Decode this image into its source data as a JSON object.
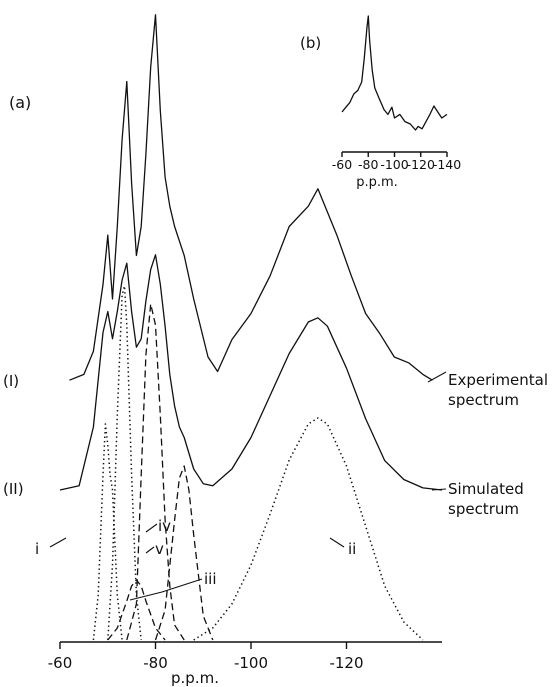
{
  "chart_data": [
    {
      "type": "line",
      "panel_label": "(a)",
      "xlabel": "p.p.m.",
      "xlim": [
        -60,
        -140
      ],
      "x_ticks": [
        -60,
        -80,
        -100,
        -120
      ],
      "x_tick_labels": [
        "-60",
        "-80",
        "-100",
        "-120"
      ],
      "series": [
        {
          "name": "Experimental spectrum",
          "label": "(I)",
          "style": "solid",
          "x": [
            -62,
            -65,
            -67,
            -69,
            -70,
            -71,
            -72,
            -73,
            -74,
            -75,
            -76,
            -77,
            -78,
            -79,
            -80,
            -81,
            -82,
            -83,
            -84,
            -86,
            -88,
            -91,
            -93,
            -96,
            -100,
            -104,
            -108,
            -112,
            -114,
            -116,
            -118,
            -121,
            -124,
            -127,
            -130,
            -133,
            -136,
            -138
          ],
          "y": [
            0.02,
            0.04,
            0.12,
            0.35,
            0.52,
            0.3,
            0.55,
            0.85,
            1.05,
            0.7,
            0.45,
            0.55,
            0.8,
            1.1,
            1.28,
            0.95,
            0.72,
            0.62,
            0.55,
            0.45,
            0.3,
            0.1,
            0.05,
            0.16,
            0.25,
            0.38,
            0.55,
            0.62,
            0.68,
            0.6,
            0.52,
            0.38,
            0.25,
            0.18,
            0.1,
            0.08,
            0.04,
            0.02
          ]
        },
        {
          "name": "Simulated spectrum",
          "label": "(II)",
          "style": "solid",
          "x": [
            -60,
            -64,
            -67,
            -69,
            -70,
            -71,
            -72,
            -73,
            -74,
            -75,
            -76,
            -77,
            -78,
            -79,
            -80,
            -81,
            -82,
            -83,
            -84,
            -85,
            -86,
            -88,
            -90,
            -92,
            -96,
            -100,
            -104,
            -108,
            -112,
            -114,
            -116,
            -120,
            -124,
            -128,
            -132,
            -136,
            -140
          ],
          "y": [
            0.0,
            0.02,
            0.3,
            0.75,
            0.85,
            0.72,
            0.85,
            1.0,
            1.08,
            0.85,
            0.68,
            0.72,
            0.9,
            1.05,
            1.12,
            0.98,
            0.78,
            0.55,
            0.4,
            0.3,
            0.25,
            0.1,
            0.03,
            0.02,
            0.1,
            0.25,
            0.45,
            0.65,
            0.8,
            0.82,
            0.78,
            0.58,
            0.34,
            0.14,
            0.05,
            0.01,
            0.0
          ]
        },
        {
          "name": "i",
          "style": "dotted",
          "x": [
            -67,
            -68,
            -69,
            -69.5,
            -70,
            -70.5,
            -71,
            -72,
            -73
          ],
          "y": [
            0.0,
            0.15,
            0.55,
            0.72,
            0.65,
            0.55,
            0.5,
            0.15,
            0.0
          ]
        },
        {
          "name": "ii",
          "style": "dotted",
          "x": [
            -88,
            -92,
            -96,
            -100,
            -104,
            -108,
            -112,
            -114,
            -116,
            -120,
            -124,
            -128,
            -132,
            -136
          ],
          "y": [
            0.0,
            0.04,
            0.12,
            0.25,
            0.42,
            0.6,
            0.72,
            0.74,
            0.72,
            0.58,
            0.38,
            0.18,
            0.06,
            0.0
          ]
        },
        {
          "name": "iii",
          "style": "dashed",
          "x": [
            -70,
            -72,
            -74,
            -75,
            -76,
            -77,
            -78,
            -80,
            -82
          ],
          "y": [
            0.0,
            0.04,
            0.13,
            0.18,
            0.2,
            0.18,
            0.13,
            0.04,
            0.0
          ]
        },
        {
          "name": "iv",
          "style": "dashed",
          "x": [
            -74,
            -76,
            -77,
            -78,
            -79,
            -80,
            -81,
            -82,
            -83,
            -84,
            -86
          ],
          "y": [
            0.0,
            0.12,
            0.55,
            0.95,
            1.12,
            1.05,
            0.75,
            0.4,
            0.18,
            0.05,
            0.0
          ]
        },
        {
          "name": "v",
          "style": "dashed",
          "x": [
            -80,
            -82,
            -84,
            -85,
            -86,
            -87,
            -88,
            -90,
            -92
          ],
          "y": [
            0.0,
            0.1,
            0.4,
            0.54,
            0.58,
            0.5,
            0.35,
            0.08,
            0.0
          ]
        },
        {
          "name": "dotted component peak near -73",
          "style": "dotted",
          "x": [
            -70,
            -71,
            -72,
            -73,
            -73.5,
            -74,
            -75,
            -76,
            -77
          ],
          "y": [
            0.0,
            0.25,
            0.75,
            1.15,
            1.18,
            1.05,
            0.55,
            0.15,
            0.0
          ]
        }
      ]
    },
    {
      "type": "line",
      "panel_label": "(b)",
      "xlabel": "p.p.m.",
      "xlim": [
        -60,
        -140
      ],
      "x_ticks": [
        -60,
        -80,
        -100,
        -120,
        -140
      ],
      "x_tick_labels": [
        "-60",
        "-80",
        "-100",
        "-120",
        "-140"
      ],
      "series": [
        {
          "style": "solid",
          "x": [
            -60,
            -63,
            -66,
            -69,
            -72,
            -75,
            -77,
            -79,
            -80,
            -81,
            -83,
            -85,
            -88,
            -92,
            -95,
            -98,
            -100,
            -104,
            -108,
            -112,
            -116,
            -118,
            -121,
            -124,
            -127,
            -130,
            -133,
            -136,
            -140
          ],
          "y": [
            0.2,
            0.24,
            0.28,
            0.35,
            0.38,
            0.45,
            0.65,
            0.9,
            1.0,
            0.8,
            0.55,
            0.4,
            0.32,
            0.22,
            0.18,
            0.24,
            0.15,
            0.18,
            0.12,
            0.1,
            0.05,
            0.08,
            0.06,
            0.12,
            0.18,
            0.25,
            0.2,
            0.15,
            0.18
          ]
        }
      ]
    }
  ],
  "labels": {
    "experimental_line1": "Experimental",
    "experimental_line2": "spectrum",
    "simulated_line1": "Simulated",
    "simulated_line2": "spectrum"
  }
}
